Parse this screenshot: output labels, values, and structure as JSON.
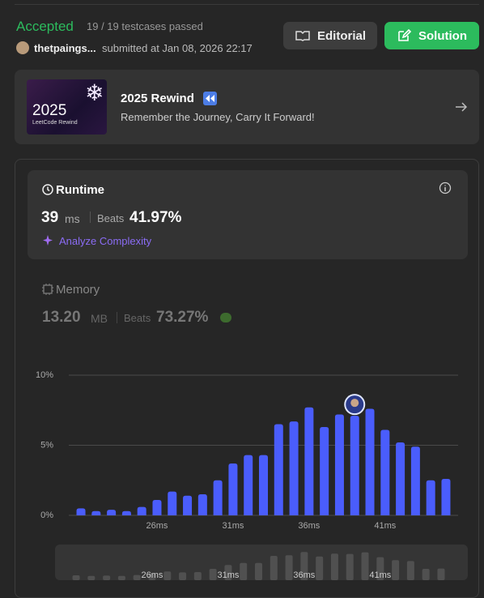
{
  "header": {
    "status": "Accepted",
    "testcases": "19 / 19 testcases passed",
    "user": "thetpaings...",
    "submitted": "submitted at Jan 08, 2026 22:17",
    "buttons": [
      "Editorial",
      "Solution"
    ]
  },
  "banner": {
    "image_title": "2025",
    "image_subtitle": "LeetCode Rewind",
    "title": "2025 Rewind",
    "subtitle": "Remember the Journey, Carry It Forward!"
  },
  "runtime": {
    "label": "Runtime",
    "value": "39",
    "unit": "ms",
    "beats_label": "Beats",
    "beats": "41.97%",
    "action": "Analyze Complexity"
  },
  "memory": {
    "label": "Memory",
    "value": "13.20",
    "unit": "MB",
    "beats_label": "Beats",
    "beats": "73.27%"
  },
  "chart_data": {
    "type": "bar",
    "x": [
      21,
      22,
      23,
      24,
      25,
      26,
      27,
      28,
      29,
      30,
      31,
      32,
      33,
      34,
      35,
      36,
      37,
      38,
      39,
      40,
      41,
      42,
      43,
      44,
      45
    ],
    "values": [
      0.5,
      0.3,
      0.4,
      0.3,
      0.6,
      1.1,
      1.7,
      1.4,
      1.5,
      2.5,
      3.7,
      4.3,
      4.3,
      6.5,
      6.7,
      7.7,
      6.3,
      7.2,
      7.1,
      7.6,
      6.1,
      5.2,
      4.9,
      2.5,
      2.6
    ],
    "color": "#4a5dfc",
    "overview_color": "#505050",
    "highlight": 39,
    "xlim": [
      20.2,
      45.8
    ],
    "ylim": [
      0,
      10
    ],
    "xticks": [
      {
        "value": 26,
        "label": "26ms"
      },
      {
        "value": 31,
        "label": "31ms"
      },
      {
        "value": 36,
        "label": "36ms"
      },
      {
        "value": 41,
        "label": "41ms"
      }
    ],
    "yticks": [
      {
        "value": 0,
        "label": "0%"
      },
      {
        "value": 5,
        "label": "5%"
      },
      {
        "value": 10,
        "label": "10%"
      }
    ],
    "grid": true
  }
}
